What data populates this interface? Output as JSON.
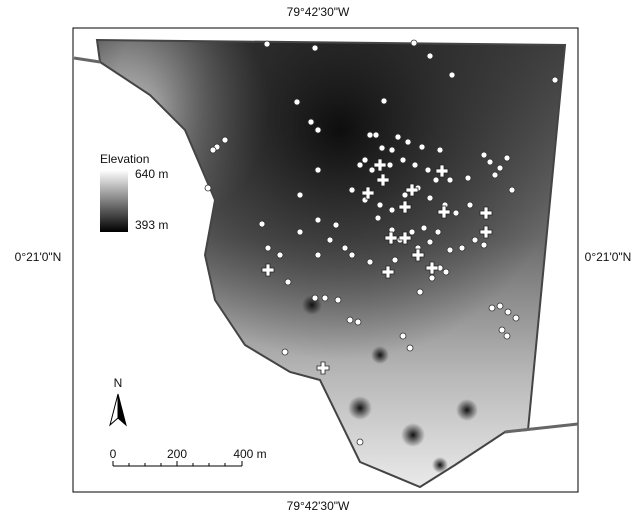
{
  "map": {
    "top_label": "79°42'30\"W",
    "bottom_label": "79°42'30\"W",
    "left_label": "0°21'0\"N",
    "right_label": "0°21'0\"N",
    "legend": {
      "title": "Elevation",
      "high": "640 m",
      "low": "393 m"
    },
    "scale": {
      "labels": [
        "0",
        "200",
        "400 m"
      ]
    },
    "north": "N"
  }
}
